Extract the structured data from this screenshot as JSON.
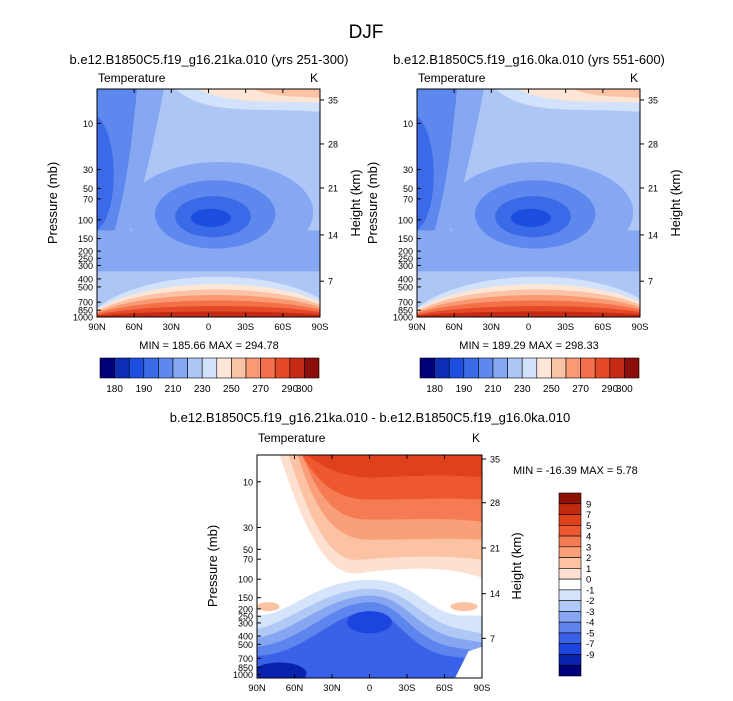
{
  "figure_title": "DJF",
  "colors": {
    "panel_palette": [
      "#00007a",
      "#0c2fb5",
      "#1c4fe0",
      "#3a6ae8",
      "#5e88ee",
      "#86a8f2",
      "#adc6f6",
      "#d3e2fb",
      "#fde6d6",
      "#fbc3a6",
      "#f99a73",
      "#f4704a",
      "#e44a28",
      "#c42a14",
      "#8c0d0a"
    ],
    "diff_palette": [
      "#00007a",
      "#0a22b0",
      "#1c45e0",
      "#3a62e8",
      "#5e85ee",
      "#86a6f2",
      "#b0c8f6",
      "#d6e4fb",
      "#ffffff",
      "#fde0cf",
      "#fbc2a4",
      "#f9a07a",
      "#f57c52",
      "#ee5830",
      "#e0411b",
      "#c22a0e",
      "#8c1205"
    ]
  },
  "chart_data": [
    {
      "type": "contour",
      "id": "panel1",
      "title": "b.e12.B1850C5.f19_g16.21ka.010 (yrs 251-300)",
      "left_label": "Temperature",
      "right_label": "K",
      "xlabel": "",
      "ylabel": "Pressure (mb)",
      "ylabel_right": "Height (km)",
      "x_ticks": [
        "90N",
        "60N",
        "30N",
        "0",
        "30S",
        "60S",
        "90S"
      ],
      "y_ticks": [
        "10",
        "30",
        "50",
        "70",
        "100",
        "150",
        "200",
        "250",
        "300",
        "400",
        "500",
        "700",
        "850",
        "1000"
      ],
      "y_ticks_right": [
        "35",
        "28",
        "21",
        "14",
        "7"
      ],
      "min_max": "MIN = 185.66  MAX = 294.78",
      "min": 185.66,
      "max": 294.78,
      "colorbar_labels": [
        "180",
        "190",
        "210",
        "230",
        "250",
        "270",
        "290",
        "300"
      ]
    },
    {
      "type": "contour",
      "id": "panel2",
      "title": "b.e12.B1850C5.f19_g16.0ka.010 (yrs 551-600)",
      "left_label": "Temperature",
      "right_label": "K",
      "xlabel": "",
      "ylabel": "Pressure (mb)",
      "ylabel_right": "Height (km)",
      "x_ticks": [
        "90N",
        "60N",
        "30N",
        "0",
        "30S",
        "60S",
        "90S"
      ],
      "y_ticks": [
        "10",
        "30",
        "50",
        "70",
        "100",
        "150",
        "200",
        "250",
        "300",
        "400",
        "500",
        "700",
        "850",
        "1000"
      ],
      "y_ticks_right": [
        "35",
        "28",
        "21",
        "14",
        "7"
      ],
      "min_max": "MIN = 189.29  MAX = 298.33",
      "min": 189.29,
      "max": 298.33,
      "colorbar_labels": [
        "180",
        "190",
        "210",
        "230",
        "250",
        "270",
        "290",
        "300"
      ]
    },
    {
      "type": "contour",
      "id": "panel3",
      "title": "b.e12.B1850C5.f19_g16.21ka.010 - b.e12.B1850C5.f19_g16.0ka.010",
      "left_label": "Temperature",
      "right_label": "K",
      "xlabel": "",
      "ylabel": "Pressure (mb)",
      "ylabel_right": "Height (km)",
      "x_ticks": [
        "90N",
        "60N",
        "30N",
        "0",
        "30S",
        "60S",
        "90S"
      ],
      "y_ticks": [
        "10",
        "30",
        "50",
        "70",
        "100",
        "150",
        "200",
        "250",
        "300",
        "400",
        "500",
        "700",
        "850",
        "1000"
      ],
      "y_ticks_right": [
        "35",
        "28",
        "21",
        "14",
        "7"
      ],
      "min_max": "MIN = -16.39  MAX =  5.78",
      "min": -16.39,
      "max": 5.78,
      "colorbar_labels": [
        "9",
        "7",
        "5",
        "4",
        "3",
        "2",
        "1",
        "0",
        "-1",
        "-2",
        "-3",
        "-4",
        "-5",
        "-7",
        "-9"
      ]
    }
  ]
}
